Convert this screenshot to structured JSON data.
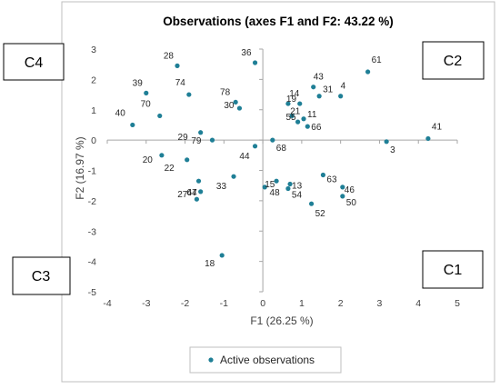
{
  "chart_data": {
    "type": "scatter",
    "title": "Observations (axes F1 and F2: 43.22 %)",
    "xlabel": "F1 (26.25 %)",
    "ylabel": "F2 (16.97 %)",
    "xlim": [
      -4,
      5
    ],
    "ylim": [
      -5,
      3
    ],
    "x_ticks": [
      "-4",
      "-3",
      "-2",
      "-1",
      "0",
      "1",
      "2",
      "3",
      "4",
      "5"
    ],
    "y_ticks": [
      "-5",
      "-4",
      "-3",
      "-2",
      "-1",
      "0",
      "1",
      "2",
      "3"
    ],
    "grid": false,
    "series": [
      {
        "name": "Active observations",
        "color": "#1f7f96",
        "points": [
          {
            "label": "3",
            "x": 3.18,
            "y": -0.05
          },
          {
            "label": "4",
            "x": 2.0,
            "y": 1.45
          },
          {
            "label": "11",
            "x": 1.05,
            "y": 0.7
          },
          {
            "label": "13",
            "x": 0.7,
            "y": -1.45
          },
          {
            "label": "14",
            "x": 0.95,
            "y": 1.2
          },
          {
            "label": "15",
            "x": 0.05,
            "y": -1.55
          },
          {
            "label": "18",
            "x": -1.05,
            "y": -3.8
          },
          {
            "label": "19",
            "x": 0.65,
            "y": 1.2
          },
          {
            "label": "20",
            "x": -2.6,
            "y": -0.5
          },
          {
            "label": "21",
            "x": 0.75,
            "y": 0.8
          },
          {
            "label": "22",
            "x": -1.95,
            "y": -0.65
          },
          {
            "label": "27",
            "x": -1.7,
            "y": -1.95
          },
          {
            "label": "28",
            "x": -2.2,
            "y": 2.45
          },
          {
            "label": "29",
            "x": -1.6,
            "y": 0.25
          },
          {
            "label": "30",
            "x": -0.6,
            "y": 1.05
          },
          {
            "label": "31",
            "x": 1.45,
            "y": 1.45
          },
          {
            "label": "33",
            "x": -0.75,
            "y": -1.2
          },
          {
            "label": "36",
            "x": -0.2,
            "y": 2.55
          },
          {
            "label": "39",
            "x": -3.0,
            "y": 1.55
          },
          {
            "label": "40",
            "x": -3.35,
            "y": 0.5
          },
          {
            "label": "41",
            "x": 4.25,
            "y": 0.05
          },
          {
            "label": "43",
            "x": 1.3,
            "y": 1.75
          },
          {
            "label": "44",
            "x": -0.2,
            "y": -0.2
          },
          {
            "label": "46",
            "x": 2.05,
            "y": -1.55
          },
          {
            "label": "47",
            "x": -1.6,
            "y": -1.7
          },
          {
            "label": "48",
            "x": 0.35,
            "y": -1.35
          },
          {
            "label": "50",
            "x": 2.05,
            "y": -1.85
          },
          {
            "label": "52",
            "x": 1.25,
            "y": -2.1
          },
          {
            "label": "54",
            "x": 0.65,
            "y": -1.6
          },
          {
            "label": "55",
            "x": 0.9,
            "y": 0.6
          },
          {
            "label": "61",
            "x": 2.7,
            "y": 2.25
          },
          {
            "label": "63",
            "x": 1.55,
            "y": -1.15
          },
          {
            "label": "64",
            "x": -1.65,
            "y": -1.35
          },
          {
            "label": "66",
            "x": 1.15,
            "y": 0.45
          },
          {
            "label": "68",
            "x": 0.25,
            "y": 0.0
          },
          {
            "label": "70",
            "x": -2.65,
            "y": 0.8
          },
          {
            "label": "74",
            "x": -1.9,
            "y": 1.5
          },
          {
            "label": "78",
            "x": -0.7,
            "y": 1.25
          },
          {
            "label": "79",
            "x": -1.3,
            "y": 0.0
          }
        ]
      }
    ],
    "legend": {
      "position": "bottom",
      "label": "Active observations"
    },
    "quadrant_labels": [
      {
        "text": "C4",
        "corner": "top-left"
      },
      {
        "text": "C2",
        "corner": "top-right"
      },
      {
        "text": "C3",
        "corner": "bottom-left"
      },
      {
        "text": "C1",
        "corner": "bottom-right"
      }
    ]
  }
}
